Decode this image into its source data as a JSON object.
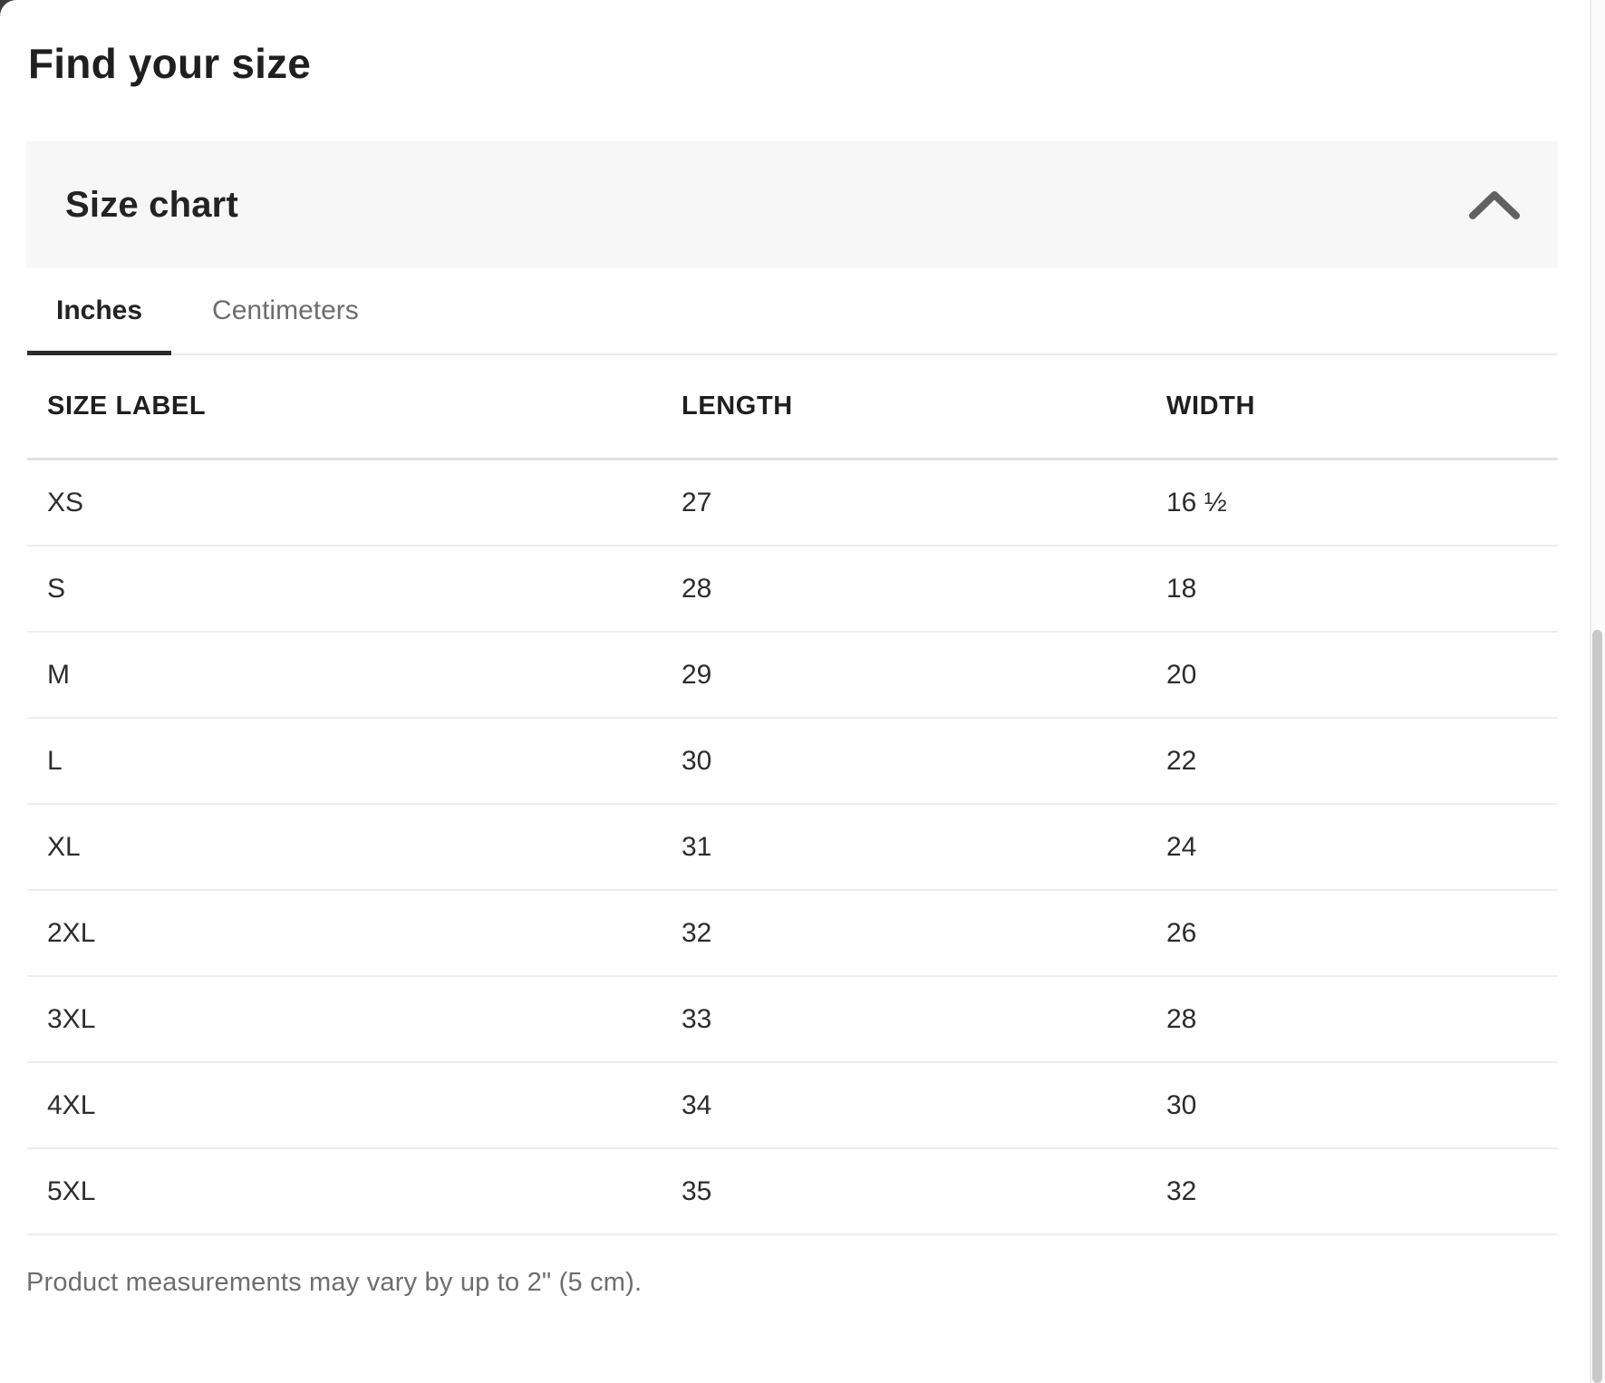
{
  "page": {
    "title": "Find your size"
  },
  "accordion": {
    "title": "Size chart",
    "state": "expanded",
    "icon": "chevron-up-icon"
  },
  "tabs": [
    {
      "label": "Inches",
      "active": true
    },
    {
      "label": "Centimeters",
      "active": false
    }
  ],
  "table": {
    "columns": [
      "SIZE LABEL",
      "LENGTH",
      "WIDTH"
    ],
    "rows": [
      [
        "XS",
        "27",
        "16 ½"
      ],
      [
        "S",
        "28",
        "18"
      ],
      [
        "M",
        "29",
        "20"
      ],
      [
        "L",
        "30",
        "22"
      ],
      [
        "XL",
        "31",
        "24"
      ],
      [
        "2XL",
        "32",
        "26"
      ],
      [
        "3XL",
        "33",
        "28"
      ],
      [
        "4XL",
        "34",
        "30"
      ],
      [
        "5XL",
        "35",
        "32"
      ]
    ]
  },
  "footer": {
    "note": "Product measurements may vary by up to 2\" (5 cm)."
  },
  "colors": {
    "text_primary": "#1f1f1f",
    "text_secondary": "#6d6d6d",
    "panel_background": "#f7f7f7",
    "active_tab_underline": "#2b2b2b",
    "divider": "#ededed",
    "scroll_thumb": "#c9c9c9",
    "backdrop": "#3d3d3d"
  }
}
